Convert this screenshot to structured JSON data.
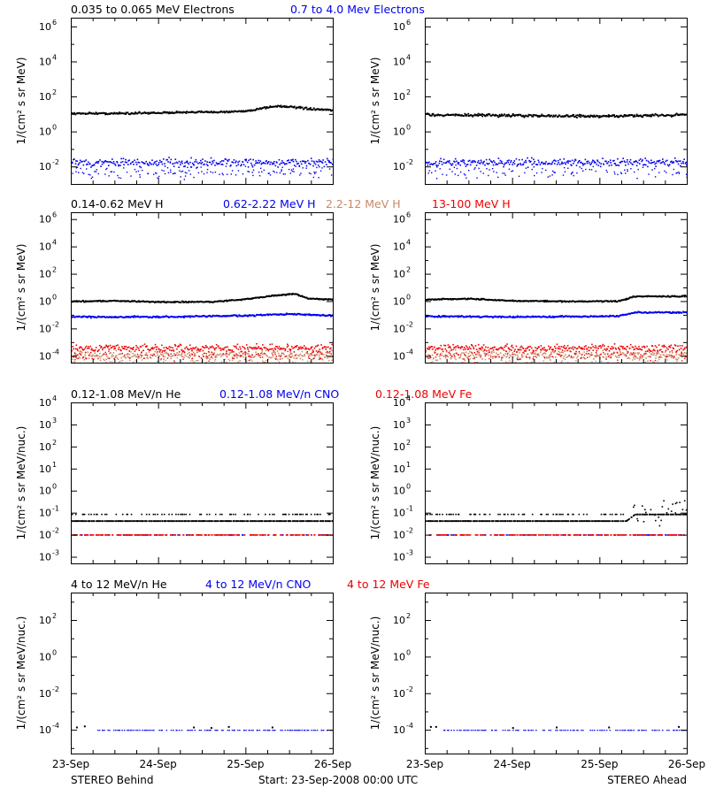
{
  "footer": {
    "left": "STEREO Behind",
    "center": "Start: 23-Sep-2008 00:00 UTC",
    "right": "STEREO Ahead"
  },
  "x_tick_labels": [
    "23-Sep",
    "24-Sep",
    "25-Sep",
    "26-Sep"
  ],
  "colors": {
    "black": "#000000",
    "blue": "#0000ee",
    "red": "#ee0000",
    "brown": "#cc8866"
  },
  "rows": [
    {
      "ylabel": "1/(cm² s sr MeV)",
      "headers": [
        {
          "text": "0.035 to 0.065 MeV Electrons",
          "color": "#000000"
        },
        {
          "text": "0.7 to 4.0 Mev Electrons",
          "color": "#0000ee"
        }
      ],
      "yticks": [
        {
          "b": "10",
          "e": "6"
        },
        {
          "b": "10",
          "e": "4"
        },
        {
          "b": "10",
          "e": "2"
        },
        {
          "b": "10",
          "e": "0"
        },
        {
          "b": "10",
          "e": "-2"
        }
      ]
    },
    {
      "ylabel": "1/(cm² s sr MeV)",
      "headers": [
        {
          "text": "0.14-0.62 MeV H",
          "color": "#000000"
        },
        {
          "text": "0.62-2.22 MeV H",
          "color": "#0000ee"
        },
        {
          "text": "2.2-12 MeV H",
          "color": "#cc8866"
        },
        {
          "text": "13-100 MeV H",
          "color": "#ee0000"
        }
      ],
      "yticks": [
        {
          "b": "10",
          "e": "6"
        },
        {
          "b": "10",
          "e": "4"
        },
        {
          "b": "10",
          "e": "2"
        },
        {
          "b": "10",
          "e": "0"
        },
        {
          "b": "10",
          "e": "-2"
        },
        {
          "b": "10",
          "e": "-4"
        }
      ]
    },
    {
      "ylabel": "1/(cm² s sr MeV/nuc.)",
      "headers": [
        {
          "text": "0.12-1.08 MeV/n He",
          "color": "#000000"
        },
        {
          "text": "0.12-1.08 MeV/n CNO",
          "color": "#0000ee"
        },
        {
          "text": "0.12-1.08 MeV Fe",
          "color": "#ee0000"
        }
      ],
      "yticks": [
        {
          "b": "10",
          "e": "4"
        },
        {
          "b": "10",
          "e": "3"
        },
        {
          "b": "10",
          "e": "2"
        },
        {
          "b": "10",
          "e": "1"
        },
        {
          "b": "10",
          "e": "0"
        },
        {
          "b": "10",
          "e": "-1"
        },
        {
          "b": "10",
          "e": "-2"
        },
        {
          "b": "10",
          "e": "-3"
        }
      ]
    },
    {
      "ylabel": "1/(cm² s sr MeV/nuc.)",
      "headers": [
        {
          "text": "4 to 12 MeV/n He",
          "color": "#000000"
        },
        {
          "text": "4 to 12 MeV/n CNO",
          "color": "#0000ee"
        },
        {
          "text": "4 to 12 MeV Fe",
          "color": "#ee0000"
        }
      ],
      "yticks": [
        {
          "b": "10",
          "e": "2"
        },
        {
          "b": "10",
          "e": "0"
        },
        {
          "b": "10",
          "e": "-2"
        },
        {
          "b": "10",
          "e": "-4"
        }
      ]
    }
  ],
  "chart_data": [
    {
      "type": "scatter",
      "panel": "electrons-behind",
      "x_unit": "days since 23-Sep-2008 00:00 UTC",
      "y_scale": "log",
      "xlim": [
        0,
        3
      ],
      "ylim": [
        0.001,
        3000000
      ],
      "series": [
        {
          "name": "0.035 to 0.065 MeV Electrons",
          "color": "#000000",
          "x": [
            0,
            0.5,
            1.0,
            1.5,
            2.0,
            2.2,
            2.4,
            2.6,
            2.8,
            3.0
          ],
          "y": [
            12,
            12,
            13,
            14,
            16,
            25,
            32,
            25,
            20,
            18
          ],
          "scatter": 0.05
        },
        {
          "name": "0.7 to 4.0 Mev Electrons",
          "color": "#0000ee",
          "x": [
            0,
            3
          ],
          "y": [
            0.018,
            0.018
          ],
          "scatter": 0.22
        }
      ]
    },
    {
      "type": "scatter",
      "panel": "electrons-ahead",
      "x_unit": "days since 23-Sep-2008 00:00 UTC",
      "y_scale": "log",
      "xlim": [
        0,
        3
      ],
      "ylim": [
        0.001,
        3000000
      ],
      "series": [
        {
          "name": "0.035 to 0.065 MeV Electrons",
          "color": "#000000",
          "x": [
            0,
            1.0,
            2.0,
            2.4,
            3.0
          ],
          "y": [
            10,
            9,
            8,
            9,
            10
          ],
          "scatter": 0.07
        },
        {
          "name": "0.7 to 4.0 Mev Electrons",
          "color": "#0000ee",
          "x": [
            0,
            3
          ],
          "y": [
            0.018,
            0.018
          ],
          "scatter": 0.2
        }
      ]
    },
    {
      "type": "scatter",
      "panel": "protons-behind",
      "x_unit": "days since 23-Sep-2008 00:00 UTC",
      "y_scale": "log",
      "xlim": [
        0,
        3
      ],
      "ylim": [
        3e-05,
        3000000
      ],
      "series": [
        {
          "name": "0.14-0.62 MeV H",
          "color": "#000000",
          "x": [
            0,
            0.5,
            1.0,
            1.6,
            2.0,
            2.3,
            2.55,
            2.7,
            3.0
          ],
          "y": [
            1.1,
            1.2,
            1.0,
            1.0,
            1.6,
            2.8,
            4.0,
            1.8,
            1.5
          ],
          "scatter": 0.04
        },
        {
          "name": "0.62-2.22 MeV H",
          "color": "#0000ee",
          "x": [
            0,
            1.0,
            2.0,
            2.5,
            3.0
          ],
          "y": [
            0.08,
            0.08,
            0.1,
            0.13,
            0.1
          ],
          "scatter": 0.05
        },
        {
          "name": "2.2-12 MeV H",
          "color": "#cc8866",
          "x": [
            0,
            3
          ],
          "y": [
            0.00012,
            0.00012
          ],
          "scatter": 0.3
        },
        {
          "name": "13-100 MeV H",
          "color": "#ee0000",
          "x": [
            0,
            3
          ],
          "y": [
            0.0004,
            0.0004
          ],
          "scatter": 0.25
        }
      ]
    },
    {
      "type": "scatter",
      "panel": "protons-ahead",
      "x_unit": "days since 23-Sep-2008 00:00 UTC",
      "y_scale": "log",
      "xlim": [
        0,
        3
      ],
      "ylim": [
        3e-05,
        3000000
      ],
      "series": [
        {
          "name": "0.14-0.62 MeV H",
          "color": "#000000",
          "x": [
            0,
            0.5,
            1.0,
            1.6,
            2.2,
            2.4,
            3.0
          ],
          "y": [
            1.5,
            1.7,
            1.2,
            1.1,
            1.1,
            2.5,
            2.6
          ],
          "scatter": 0.04
        },
        {
          "name": "0.62-2.22 MeV H",
          "color": "#0000ee",
          "x": [
            0,
            1.0,
            2.2,
            2.4,
            3.0
          ],
          "y": [
            0.09,
            0.08,
            0.09,
            0.17,
            0.17
          ],
          "scatter": 0.05
        },
        {
          "name": "2.2-12 MeV H",
          "color": "#cc8866",
          "x": [
            0,
            3
          ],
          "y": [
            0.00012,
            0.00012
          ],
          "scatter": 0.3
        },
        {
          "name": "13-100 MeV H",
          "color": "#ee0000",
          "x": [
            0,
            3
          ],
          "y": [
            0.0004,
            0.0004
          ],
          "scatter": 0.25
        }
      ]
    },
    {
      "type": "scatter",
      "panel": "suprathermal-behind",
      "x_unit": "days since 23-Sep-2008 00:00 UTC",
      "y_scale": "log",
      "xlim": [
        0,
        3
      ],
      "ylim": [
        0.0005,
        10000
      ],
      "series": [
        {
          "name": "0.12-1.08 MeV/n He",
          "color": "#000000",
          "x": [
            0,
            3
          ],
          "y": [
            0.045,
            0.045
          ],
          "levels": [
            0.045,
            0.09,
            0.14
          ]
        },
        {
          "name": "0.12-1.08 MeV/n CNO",
          "color": "#0000ee",
          "x": [
            0,
            3
          ],
          "y": [
            0.0105,
            0.0105
          ]
        },
        {
          "name": "0.12-1.08 MeV Fe",
          "color": "#ee0000",
          "x": [
            0,
            3
          ],
          "y": [
            0.0105,
            0.0105
          ]
        }
      ]
    },
    {
      "type": "scatter",
      "panel": "suprathermal-ahead",
      "x_unit": "days since 23-Sep-2008 00:00 UTC",
      "y_scale": "log",
      "xlim": [
        0,
        3
      ],
      "ylim": [
        0.0005,
        10000
      ],
      "series": [
        {
          "name": "0.12-1.08 MeV/n He",
          "color": "#000000",
          "x": [
            0,
            2.3,
            2.4,
            3.0
          ],
          "y": [
            0.045,
            0.045,
            0.09,
            0.09
          ],
          "levels": [
            0.045,
            0.09,
            0.14,
            0.3
          ]
        },
        {
          "name": "0.12-1.08 MeV/n CNO",
          "color": "#0000ee",
          "x": [
            0,
            3
          ],
          "y": [
            0.0105,
            0.0105
          ]
        },
        {
          "name": "0.12-1.08 MeV Fe",
          "color": "#ee0000",
          "x": [
            0,
            3
          ],
          "y": [
            0.0105,
            0.0105
          ]
        }
      ]
    },
    {
      "type": "scatter",
      "panel": "high-energy-behind",
      "x_unit": "days since 23-Sep-2008 00:00 UTC",
      "y_scale": "log",
      "xlim": [
        0,
        3
      ],
      "ylim": [
        5e-06,
        3000
      ],
      "series": [
        {
          "name": "4 to 12 MeV/n He",
          "color": "#000000",
          "x": [
            0.06,
            0.15,
            1.4,
            1.6,
            1.8,
            2.3
          ],
          "y": [
            0.00015,
            0.00017,
            0.00015,
            0.00014,
            0.00016,
            0.00015
          ]
        },
        {
          "name": "4 to 12 MeV/n CNO",
          "color": "#0000ee",
          "x": [
            0.3,
            3.0
          ],
          "y": [
            0.0001,
            0.0001
          ]
        },
        {
          "name": "4 to 12 MeV Fe",
          "color": "#ee0000",
          "x": [],
          "y": []
        }
      ]
    },
    {
      "type": "scatter",
      "panel": "high-energy-ahead",
      "x_unit": "days since 23-Sep-2008 00:00 UTC",
      "y_scale": "log",
      "xlim": [
        0,
        3
      ],
      "ylim": [
        5e-06,
        3000
      ],
      "series": [
        {
          "name": "4 to 12 MeV/n He",
          "color": "#000000",
          "x": [
            0.06,
            0.12,
            1.0,
            1.5,
            2.1,
            2.9
          ],
          "y": [
            0.00016,
            0.00016,
            0.00014,
            0.00015,
            0.00015,
            0.00016
          ]
        },
        {
          "name": "4 to 12 MeV/n CNO",
          "color": "#0000ee",
          "x": [
            0.2,
            3.0
          ],
          "y": [
            0.0001,
            0.0001
          ]
        },
        {
          "name": "4 to 12 MeV Fe",
          "color": "#ee0000",
          "x": [],
          "y": []
        }
      ]
    }
  ]
}
